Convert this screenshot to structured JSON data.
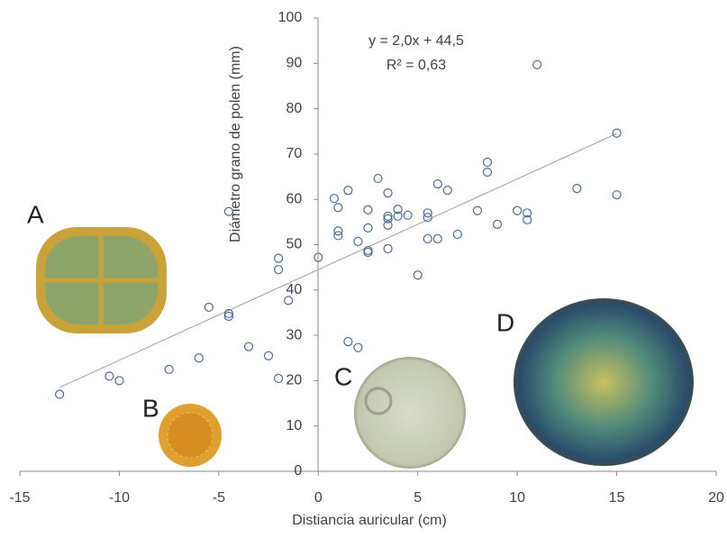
{
  "chart_data": {
    "type": "scatter",
    "x_label": "Distiancia auricular (cm)",
    "y_label": "Diámetro grano de polen (mm)",
    "equation": "y = 2,0x + 44,5",
    "r_squared": "R² = 0,63",
    "annotations": [
      "A",
      "B",
      "C",
      "D"
    ],
    "color": "#4a6b9c",
    "trendline": {
      "x": [
        -13,
        15
      ],
      "y": [
        18.5,
        74.5
      ],
      "color": "#a0a0a0"
    },
    "x": [
      -13,
      -10.5,
      -10,
      -7.5,
      -6,
      -5.5,
      -4.5,
      -4.5,
      -4.5,
      -3.5,
      -2.5,
      -2,
      -2,
      -2,
      -1.5,
      0,
      0.8,
      1,
      1,
      1,
      1.5,
      1.5,
      2,
      2,
      2.5,
      2.5,
      2.5,
      2.5,
      3,
      3.5,
      3.5,
      3.5,
      3.5,
      3.5,
      4,
      4,
      4.5,
      5,
      5.5,
      5.5,
      5.5,
      6,
      6,
      6.5,
      7,
      8,
      8.5,
      8.5,
      9,
      10,
      10.5,
      10.5,
      11,
      13,
      15,
      15
    ],
    "y": [
      17,
      21,
      20,
      22.5,
      25,
      36.2,
      34.8,
      34.2,
      57.3,
      27.5,
      25.5,
      47,
      44.5,
      20.5,
      37.7,
      47.2,
      60.2,
      58.2,
      53,
      52,
      62,
      28.6,
      27.3,
      50.7,
      57.7,
      53.7,
      48.7,
      48.3,
      64.6,
      61.4,
      56.3,
      55.7,
      54.3,
      49.1,
      57.8,
      56.3,
      56.5,
      43.3,
      57,
      56,
      51.3,
      63.4,
      51.3,
      62,
      52.3,
      57.5,
      68.2,
      66,
      54.5,
      57.5,
      57,
      55.5,
      89.7,
      62.4,
      74.6,
      61
    ],
    "xlim": [
      -15,
      20
    ],
    "ylim": [
      0,
      100
    ],
    "xticks": [
      -15,
      -10,
      -5,
      0,
      5,
      10,
      15,
      20
    ],
    "yticks": [
      0,
      10,
      20,
      30,
      40,
      50,
      60,
      70,
      80,
      90,
      100
    ]
  }
}
